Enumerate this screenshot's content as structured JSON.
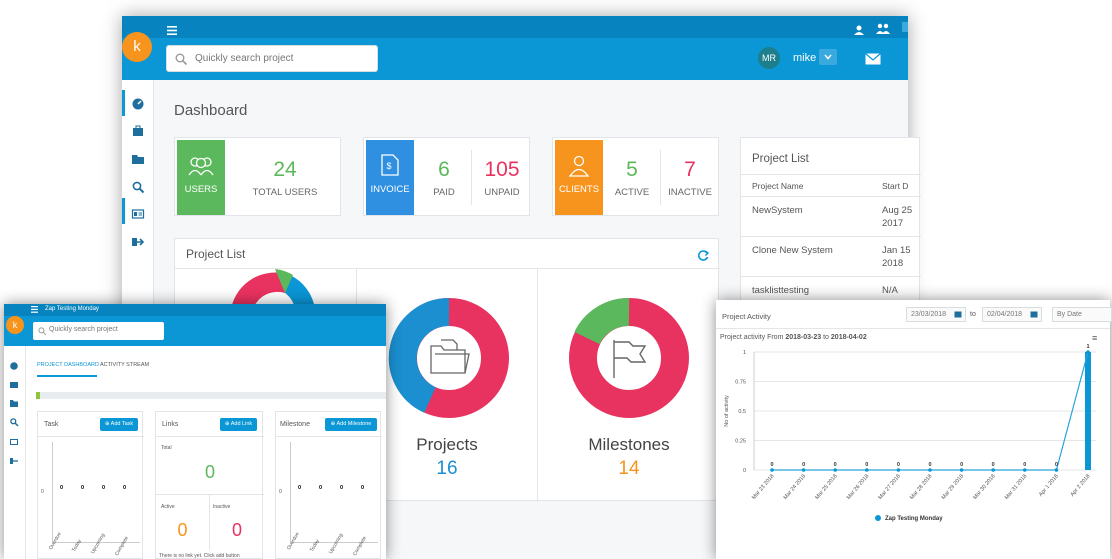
{
  "main": {
    "logo_letter": "k",
    "search_placeholder": "Quickly search project",
    "user_initials": "MR",
    "user_name": "mike",
    "page_title": "Dashboard",
    "stats": {
      "users_tile": "USERS",
      "users_count": "24",
      "users_label": "TOTAL USERS",
      "invoice_tile": "INVOICE",
      "paid_count": "6",
      "paid_label": "PAID",
      "unpaid_count": "105",
      "unpaid_label": "UNPAID",
      "clients_tile": "CLIENTS",
      "active_count": "5",
      "active_label": "ACTIVE",
      "inactive_count": "7",
      "inactive_label": "INACTIVE"
    },
    "project_list_panel": {
      "title": "Project List",
      "donuts": [
        {
          "label": "Projects",
          "value": "16"
        },
        {
          "label": "Milestones",
          "value": "14"
        }
      ]
    },
    "project_table": {
      "title": "Project List",
      "columns": [
        "Project Name",
        "Start D"
      ],
      "rows": [
        {
          "name": "NewSystem",
          "start1": "Aug 25",
          "start2": "2017"
        },
        {
          "name": "Clone New System",
          "start1": "Jan 15",
          "start2": "2018"
        },
        {
          "name": "tasklisttesting",
          "start1": "N/A",
          "start2": ""
        }
      ]
    }
  },
  "window2": {
    "logo_letter": "k",
    "title": "Zap Testing Monday",
    "search_placeholder": "Quickly search project",
    "tabs": [
      "PROJECT DASHBOARD",
      "ACTIVITY STREAM"
    ],
    "task": {
      "title": "Task",
      "add_label": "Add Task",
      "axis_zero": "0",
      "values": [
        "0",
        "0",
        "0",
        "0"
      ],
      "ticks": [
        "Overdue",
        "Today",
        "Upcoming",
        "Complete"
      ]
    },
    "links": {
      "title": "Links",
      "add_label": "Add Link",
      "total_label": "Total",
      "total": "0",
      "active_label": "Active",
      "active": "0",
      "inactive_label": "Inactive",
      "inactive": "0",
      "note": "There is no link yet. Click add button"
    },
    "milestone": {
      "title": "Milestone",
      "add_label": "Add Milestone",
      "axis_zero": "0",
      "values": [
        "0",
        "0",
        "0",
        "0"
      ],
      "ticks": [
        "Overdue",
        "Today",
        "Upcoming",
        "Complete"
      ]
    }
  },
  "window3": {
    "title": "Project Activity",
    "date_from": "23/03/2018",
    "to_label": "to",
    "date_to": "02/04/2018",
    "group_by": "By Date",
    "subtitle_prefix": "Project activity From ",
    "subtitle_from": "2018-03-23",
    "subtitle_mid": " to ",
    "subtitle_to": "2018-04-02",
    "menu_glyph": "≡"
  },
  "chart_data": {
    "type": "bar",
    "ylabel": "No of activity",
    "ylim": [
      0,
      1
    ],
    "yticks": [
      "0",
      "0.25",
      "0.5",
      "0.75",
      "1"
    ],
    "categories": [
      "Mar 23 2018",
      "Mar 24 2018",
      "Mar 25 2018",
      "Mar 26 2018",
      "Mar 27 2018",
      "Mar 28 2018",
      "Mar 29 2018",
      "Mar 30 2018",
      "Mar 31 2018",
      "Apr 1 2018",
      "Apr 2 2018"
    ],
    "series": [
      {
        "name": "Zap Testing Monday",
        "values": [
          0,
          0,
          0,
          0,
          0,
          0,
          0,
          0,
          0,
          0,
          1
        ]
      }
    ],
    "data_labels": [
      "0",
      "0",
      "0",
      "0",
      "0",
      "0",
      "0",
      "0",
      "0",
      "0",
      "1"
    ],
    "grid": true,
    "legend": "bottom"
  },
  "colors": {
    "accent": "#0b96d6",
    "users": "#5cb85c",
    "invoice": "#2f8fe0",
    "clients": "#f7941d",
    "red": "#e8325f",
    "green": "#5cb85c",
    "orange": "#f7941d"
  }
}
